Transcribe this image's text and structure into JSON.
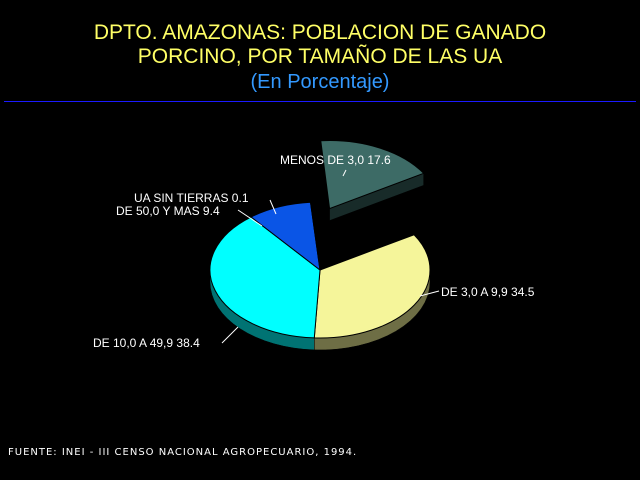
{
  "header": {
    "title_line1": "DPTO. AMAZONAS: POBLACION DE GANADO",
    "title_line2": "PORCINO, POR TAMAÑO DE LAS UA",
    "subtitle": "(En Porcentaje)"
  },
  "footer": {
    "source": "FUENTE: INEI - III CENSO NACIONAL AGROPECUARIO, 1994."
  },
  "colors": {
    "background": "#000000",
    "title": "#ffff66",
    "subtitle": "#3399ff",
    "rule": "#1a1aff"
  },
  "chart_data": {
    "type": "pie",
    "title": "DPTO. AMAZONAS: POBLACION DE GANADO PORCINO, POR TAMAÑO DE LAS UA",
    "subtitle": "(En Porcentaje)",
    "slices": [
      {
        "name": "MENOS DE 3,0",
        "value": 17.6,
        "display": "17.6",
        "color": "#3d6b66",
        "exploded": true
      },
      {
        "name": "DE 3,0 A 9,9",
        "value": 34.5,
        "display": "34.5",
        "color": "#f5f59a",
        "exploded": false
      },
      {
        "name": "DE 10,0 A 49,9",
        "value": 38.4,
        "display": "38.4",
        "color": "#00ffff",
        "exploded": false
      },
      {
        "name": "DE 50,0 Y MAS",
        "value": 9.4,
        "display": "9.4",
        "color": "#0a55e6",
        "exploded": false
      },
      {
        "name": "UA SIN TIERRAS",
        "value": 0.1,
        "display": "0.1",
        "color": "#5e8fa8",
        "exploded": false
      }
    ],
    "legend": "none",
    "style": "3d"
  }
}
